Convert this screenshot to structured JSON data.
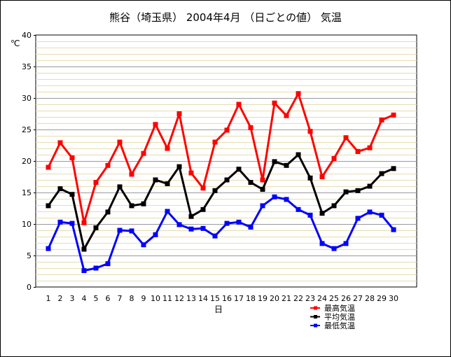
{
  "chart_data": {
    "type": "line",
    "title": "熊谷（埼玉県） 2004年4月 （日ごとの値） 気温",
    "xlabel": "日",
    "ylabel": "℃",
    "ylim": [
      0,
      40
    ],
    "yticks": [
      0,
      5,
      10,
      15,
      20,
      25,
      30,
      35,
      40
    ],
    "x": [
      1,
      2,
      3,
      4,
      5,
      6,
      7,
      8,
      9,
      10,
      11,
      12,
      13,
      14,
      15,
      16,
      17,
      18,
      19,
      20,
      21,
      22,
      23,
      24,
      25,
      26,
      27,
      28,
      29,
      30
    ],
    "grid": true,
    "legend_position": "bottom-right",
    "series": [
      {
        "name": "最高気温",
        "color": "#ff0000",
        "values": [
          19.0,
          22.9,
          20.5,
          10.2,
          16.6,
          19.3,
          23.0,
          17.9,
          21.2,
          25.8,
          22.0,
          27.5,
          18.1,
          15.7,
          23.0,
          24.9,
          29.0,
          25.3,
          17.0,
          29.2,
          27.2,
          30.7,
          24.7,
          17.5,
          20.4,
          23.7,
          21.5,
          22.1,
          26.5,
          27.3
        ]
      },
      {
        "name": "平均気温",
        "color": "#000000",
        "values": [
          12.9,
          15.6,
          14.7,
          6.0,
          9.4,
          11.9,
          15.9,
          12.9,
          13.2,
          17.0,
          16.4,
          19.1,
          11.2,
          12.3,
          15.3,
          17.0,
          18.7,
          16.6,
          15.5,
          19.9,
          19.3,
          21.0,
          17.3,
          11.7,
          12.9,
          15.1,
          15.3,
          16.0,
          18.0,
          18.8
        ]
      },
      {
        "name": "最低気温",
        "color": "#0000ff",
        "values": [
          6.1,
          10.3,
          10.1,
          2.6,
          3.0,
          3.7,
          9.0,
          8.9,
          6.7,
          8.3,
          12.0,
          9.9,
          9.2,
          9.3,
          8.1,
          10.1,
          10.3,
          9.5,
          12.9,
          14.3,
          13.9,
          12.3,
          11.4,
          6.9,
          6.1,
          6.9,
          10.9,
          11.9,
          11.4,
          9.1
        ]
      }
    ]
  }
}
